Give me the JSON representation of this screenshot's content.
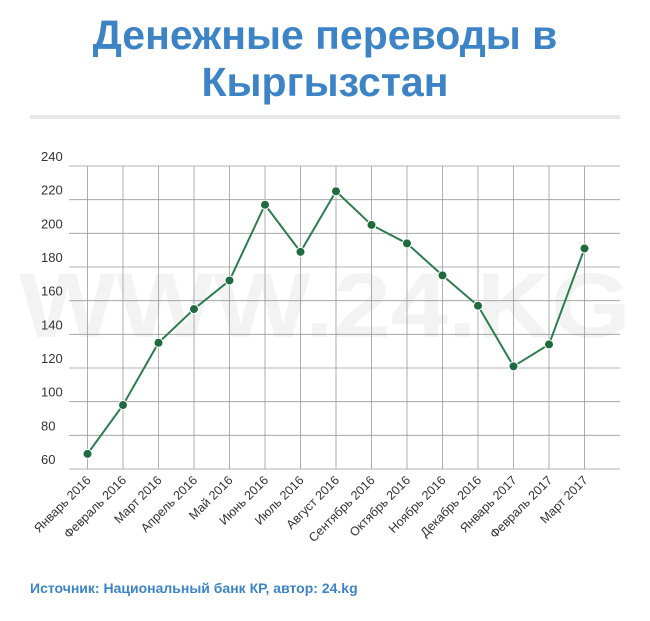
{
  "title": "Денежные переводы в Кыргызстан",
  "watermark": "WWW.24.KG",
  "source": "Источник: Национальный банк КР, автор: 24.kg",
  "colors": {
    "title": "#3d84c6",
    "line": "#2e7d4f",
    "marker": "#1f6b3f",
    "grid": "#9a9a9a"
  },
  "chart_data": {
    "type": "line",
    "title": "Денежные переводы в Кыргызстан",
    "xlabel": "",
    "ylabel": "",
    "ylim": [
      60,
      240
    ],
    "yticks": [
      60,
      80,
      100,
      120,
      140,
      160,
      180,
      200,
      220,
      240
    ],
    "grid": true,
    "categories": [
      "Январь 2016",
      "Февраль 2016",
      "Март 2016",
      "Апрель 2016",
      "Май 2016",
      "Июнь 2016",
      "Июль 2016",
      "Август 2016",
      "Сентябрь 2016",
      "Октябрь 2016",
      "Ноябрь 2016",
      "Декабрь 2016",
      "Январь 2017",
      "Февраль 2017",
      "Март 2017"
    ],
    "series": [
      {
        "values": [
          69,
          98,
          135,
          155,
          172,
          217,
          189,
          225,
          205,
          194,
          175,
          157,
          121,
          134,
          191
        ]
      }
    ]
  }
}
